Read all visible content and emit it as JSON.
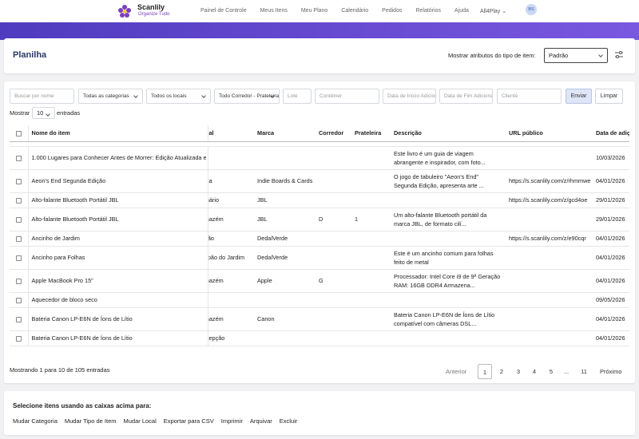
{
  "header": {
    "brand": "Scanlily",
    "tagline": "Organize Tudo",
    "nav": [
      "Painel de Controle",
      "Meus Itens",
      "Meu Plano",
      "Calendário",
      "Pedidos",
      "Relatórios",
      "Ajuda"
    ],
    "account": "All4Play",
    "avatar": "BS"
  },
  "page": {
    "title": "Planilha",
    "attr_label": "Mostrar atributos do tipo de item:",
    "attr_select": "Padrão"
  },
  "filters": {
    "name": "Buscar por nome",
    "category": "Todas as categorias",
    "location": "Todos os locais",
    "aisle": "Todo Corredor - Prateleira",
    "lot": "Lote",
    "container": "Contêiner",
    "date_from": "Data de Início Adicionado",
    "date_to": "Data de Fim Adicionado",
    "client": "Cliente",
    "submit": "Enviar",
    "clear": "Limpar"
  },
  "show_entries": {
    "before": "Mostrar",
    "value": 10,
    "after": "entradas"
  },
  "table": {
    "columns": [
      "Nome do item",
      "Local",
      "Marca",
      "Corredor",
      "Prateleira",
      "Descrição",
      "URL público",
      "Data de adição"
    ],
    "rows": [
      [
        "1.000 Lugares para Conhecer Antes de Morrer: Edição Atualizada e",
        null,
        null,
        null,
        null,
        "Este livro é um guia de viagem abrangente e inspirador, com foto...",
        null,
        "10/03/2026"
      ],
      [
        "Aeon's End Segunda Edição",
        "Casa",
        "Indie Boards & Cards",
        null,
        null,
        "O jogo de tabuleiro \"Aeon's End\" Segunda Edição, apresenta arte ...",
        "https://s.scanlily.com/z/rhmmwe",
        "04/01/2026"
      ],
      [
        "Alto-falante Bluetooth Portátil JBL",
        "Armário",
        "JBL",
        null,
        null,
        null,
        "https://s.scanlily.com/z/gcd4oe",
        "29/01/2026"
      ],
      [
        "Alto-falante Bluetooth Portátil JBL",
        "Armazém",
        "JBL",
        "D",
        "1",
        "Um alto-falante Bluetooth portátil da marca JBL, de formato cilí...",
        null,
        "29/01/2026"
      ],
      [
        "Ancinho de Jardim",
        "Porão",
        "DedalVerde",
        null,
        null,
        null,
        "https://s.scanlily.com/z/e90cqr",
        "04/01/2026"
      ],
      [
        "Ancinho para Folhas",
        "Galpão do Jardim",
        "DedalVerde",
        null,
        null,
        "Este é um ancinho comum para folhas feito de metal",
        null,
        "04/01/2026"
      ],
      [
        "Apple MacBook Pro 15\"",
        "Armazém",
        "Apple",
        "G",
        null,
        "Processador: Intel Core i9 de 9ª Geração RAM: 16GB DDR4 Armazena...",
        null,
        "04/01/2026"
      ],
      [
        "Aquecedor de bloco seco",
        null,
        null,
        null,
        null,
        null,
        null,
        "09/05/2026"
      ],
      [
        "Bateria Canon LP-E6N de Íons de Lítio",
        "Armazém",
        "Canon",
        null,
        null,
        "Bateria Canon LP-E6N de Íons de Lítio compatível com câmeras DSL...",
        null,
        "04/01/2026"
      ],
      [
        "Bateria Canon LP-E6N de Íons de Lítio",
        "Recepção",
        null,
        null,
        null,
        null,
        null,
        "04/01/2026"
      ]
    ]
  },
  "footer": {
    "info": "Mostrando 1 para 10 de 105 entradas",
    "prev": "Anterior",
    "pages": [
      "1",
      "2",
      "3",
      "4",
      "5",
      "...",
      "11"
    ],
    "next": "Próximo"
  },
  "bulk": {
    "prompt": "Selecione itens usando as caixas acima para:",
    "actions": [
      "Mudar Categoria",
      "Mudar Tipo de Item",
      "Mudar Local",
      "Exportar para CSV",
      "Imprimir",
      "Arquivar",
      "Excluir"
    ]
  }
}
